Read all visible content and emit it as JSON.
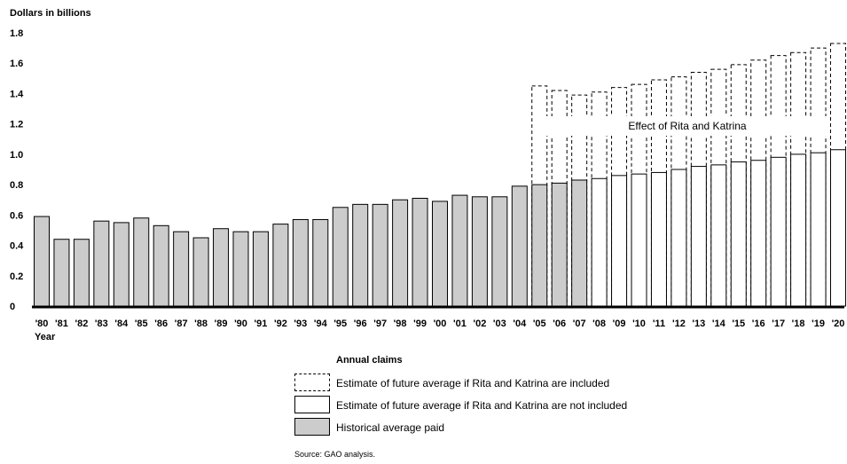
{
  "chart_data": {
    "type": "bar",
    "ylabel": "Dollars in billions",
    "xlabel": "Year",
    "ylim": [
      0,
      1.8
    ],
    "yticks": [
      "0",
      "0.2",
      "0.4",
      "0.6",
      "0.8",
      "1.0",
      "1.2",
      "1.4",
      "1.6",
      "1.8"
    ],
    "categories": [
      "'80",
      "'81",
      "'82",
      "'83",
      "'84",
      "'85",
      "'86",
      "'87",
      "'88",
      "'89",
      "'90",
      "'91",
      "'92",
      "'93",
      "'94",
      "'95",
      "'96",
      "'97",
      "'98",
      "'99",
      "'00",
      "'01",
      "'02",
      "'03",
      "'04",
      "'05",
      "'06",
      "'07",
      "'08",
      "'09",
      "'10",
      "'11",
      "'12",
      "'13",
      "'14",
      "'15",
      "'16",
      "'17",
      "'18",
      "'19",
      "'20"
    ],
    "series": [
      {
        "name": "Historical average paid",
        "style": "gray",
        "values": [
          0.59,
          0.44,
          0.44,
          0.56,
          0.55,
          0.58,
          0.53,
          0.49,
          0.45,
          0.51,
          0.49,
          0.49,
          0.54,
          0.57,
          0.57,
          0.65,
          0.67,
          0.67,
          0.7,
          0.71,
          0.69,
          0.73,
          0.72,
          0.72,
          0.79,
          0.8,
          0.81,
          0.83,
          null,
          null,
          null,
          null,
          null,
          null,
          null,
          null,
          null,
          null,
          null,
          null,
          null
        ]
      },
      {
        "name": "Estimate of future average if Rita and Katrina are not included",
        "style": "white",
        "values": [
          null,
          null,
          null,
          null,
          null,
          null,
          null,
          null,
          null,
          null,
          null,
          null,
          null,
          null,
          null,
          null,
          null,
          null,
          null,
          null,
          null,
          null,
          null,
          null,
          null,
          null,
          null,
          null,
          0.84,
          0.86,
          0.87,
          0.88,
          0.9,
          0.92,
          0.93,
          0.95,
          0.96,
          0.98,
          1.0,
          1.01,
          1.03
        ]
      },
      {
        "name": "Estimate of future average if Rita and Katrina are included",
        "style": "dashed",
        "values": [
          null,
          null,
          null,
          null,
          null,
          null,
          null,
          null,
          null,
          null,
          null,
          null,
          null,
          null,
          null,
          null,
          null,
          null,
          null,
          null,
          null,
          null,
          null,
          null,
          null,
          1.45,
          1.42,
          1.39,
          1.41,
          1.44,
          1.46,
          1.49,
          1.51,
          1.54,
          1.56,
          1.59,
          1.62,
          1.65,
          1.67,
          1.7,
          1.73
        ]
      }
    ],
    "annotation": "Effect of Rita and Katrina",
    "legend_title": "Annual claims",
    "grid": false,
    "legend_position": "bottom",
    "colors": {
      "historical": "#cccccc",
      "future": "#ffffff",
      "outline": "#000000"
    }
  },
  "source": "Source: GAO analysis."
}
